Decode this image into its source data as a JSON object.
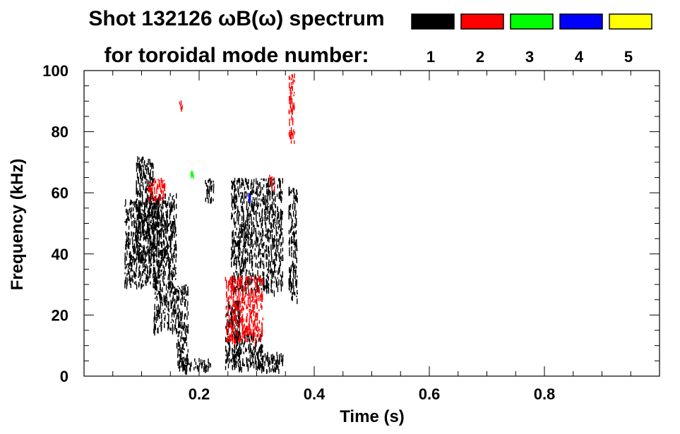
{
  "chart_data": {
    "type": "heatmap",
    "title_line1": "Shot 132126 ωB(ω) spectrum",
    "title_line2": "for toroidal mode number:",
    "xlabel": "Time (s)",
    "ylabel": "Frequency (kHz)",
    "xlim": [
      0.0,
      1.0
    ],
    "ylim": [
      0,
      100
    ],
    "x_ticks": [
      0.2,
      0.4,
      0.6,
      0.8
    ],
    "x_tick_labels": [
      "0.2",
      "0.4",
      "0.6",
      "0.8"
    ],
    "y_ticks": [
      0,
      20,
      40,
      60,
      80,
      100
    ],
    "y_tick_labels": [
      "0",
      "20",
      "40",
      "60",
      "80",
      "100"
    ],
    "legend": {
      "placement": "top",
      "entries": [
        {
          "label": "1",
          "color": "#000000"
        },
        {
          "label": "2",
          "color": "#ff0000"
        },
        {
          "label": "3",
          "color": "#00ff00"
        },
        {
          "label": "4",
          "color": "#0000ff"
        },
        {
          "label": "5",
          "color": "#ffff00"
        }
      ]
    },
    "series": [
      {
        "mode": "1",
        "color": "#000000",
        "regions": [
          {
            "t": [
              0.07,
              0.13
            ],
            "f": [
              30,
              58
            ]
          },
          {
            "t": [
              0.09,
              0.12
            ],
            "f": [
              38,
              72
            ]
          },
          {
            "t": [
              0.12,
              0.16
            ],
            "f": [
              15,
              60
            ]
          },
          {
            "t": [
              0.16,
              0.18
            ],
            "f": [
              3,
              30
            ]
          },
          {
            "t": [
              0.17,
              0.22
            ],
            "f": [
              2,
              6
            ]
          },
          {
            "t": [
              0.21,
              0.225
            ],
            "f": [
              58,
              65
            ]
          },
          {
            "t": [
              0.245,
              0.27
            ],
            "f": [
              3,
              25
            ]
          },
          {
            "t": [
              0.26,
              0.31
            ],
            "f": [
              3,
              15
            ]
          },
          {
            "t": [
              0.3,
              0.345
            ],
            "f": [
              2,
              8
            ]
          },
          {
            "t": [
              0.255,
              0.345
            ],
            "f": [
              28,
              65
            ]
          },
          {
            "t": [
              0.355,
              0.37
            ],
            "f": [
              25,
              62
            ]
          }
        ]
      },
      {
        "mode": "2",
        "color": "#ff0000",
        "regions": [
          {
            "t": [
              0.245,
              0.31
            ],
            "f": [
              12,
              33
            ]
          },
          {
            "t": [
              0.11,
              0.14
            ],
            "f": [
              58,
              65
            ]
          },
          {
            "t": [
              0.165,
              0.17
            ],
            "f": [
              88,
              92
            ]
          },
          {
            "t": [
              0.355,
              0.365
            ],
            "f": [
              75,
              100
            ]
          },
          {
            "t": [
              0.32,
              0.33
            ],
            "f": [
              62,
              66
            ]
          }
        ]
      },
      {
        "mode": "3",
        "color": "#00ff00",
        "regions": [
          {
            "t": [
              0.185,
              0.19
            ],
            "f": [
              66,
              68
            ]
          }
        ]
      },
      {
        "mode": "4",
        "color": "#0000ff",
        "regions": [
          {
            "t": [
              0.285,
              0.29
            ],
            "f": [
              58,
              60
            ]
          }
        ]
      },
      {
        "mode": "5",
        "color": "#ffff00",
        "regions": []
      }
    ]
  }
}
